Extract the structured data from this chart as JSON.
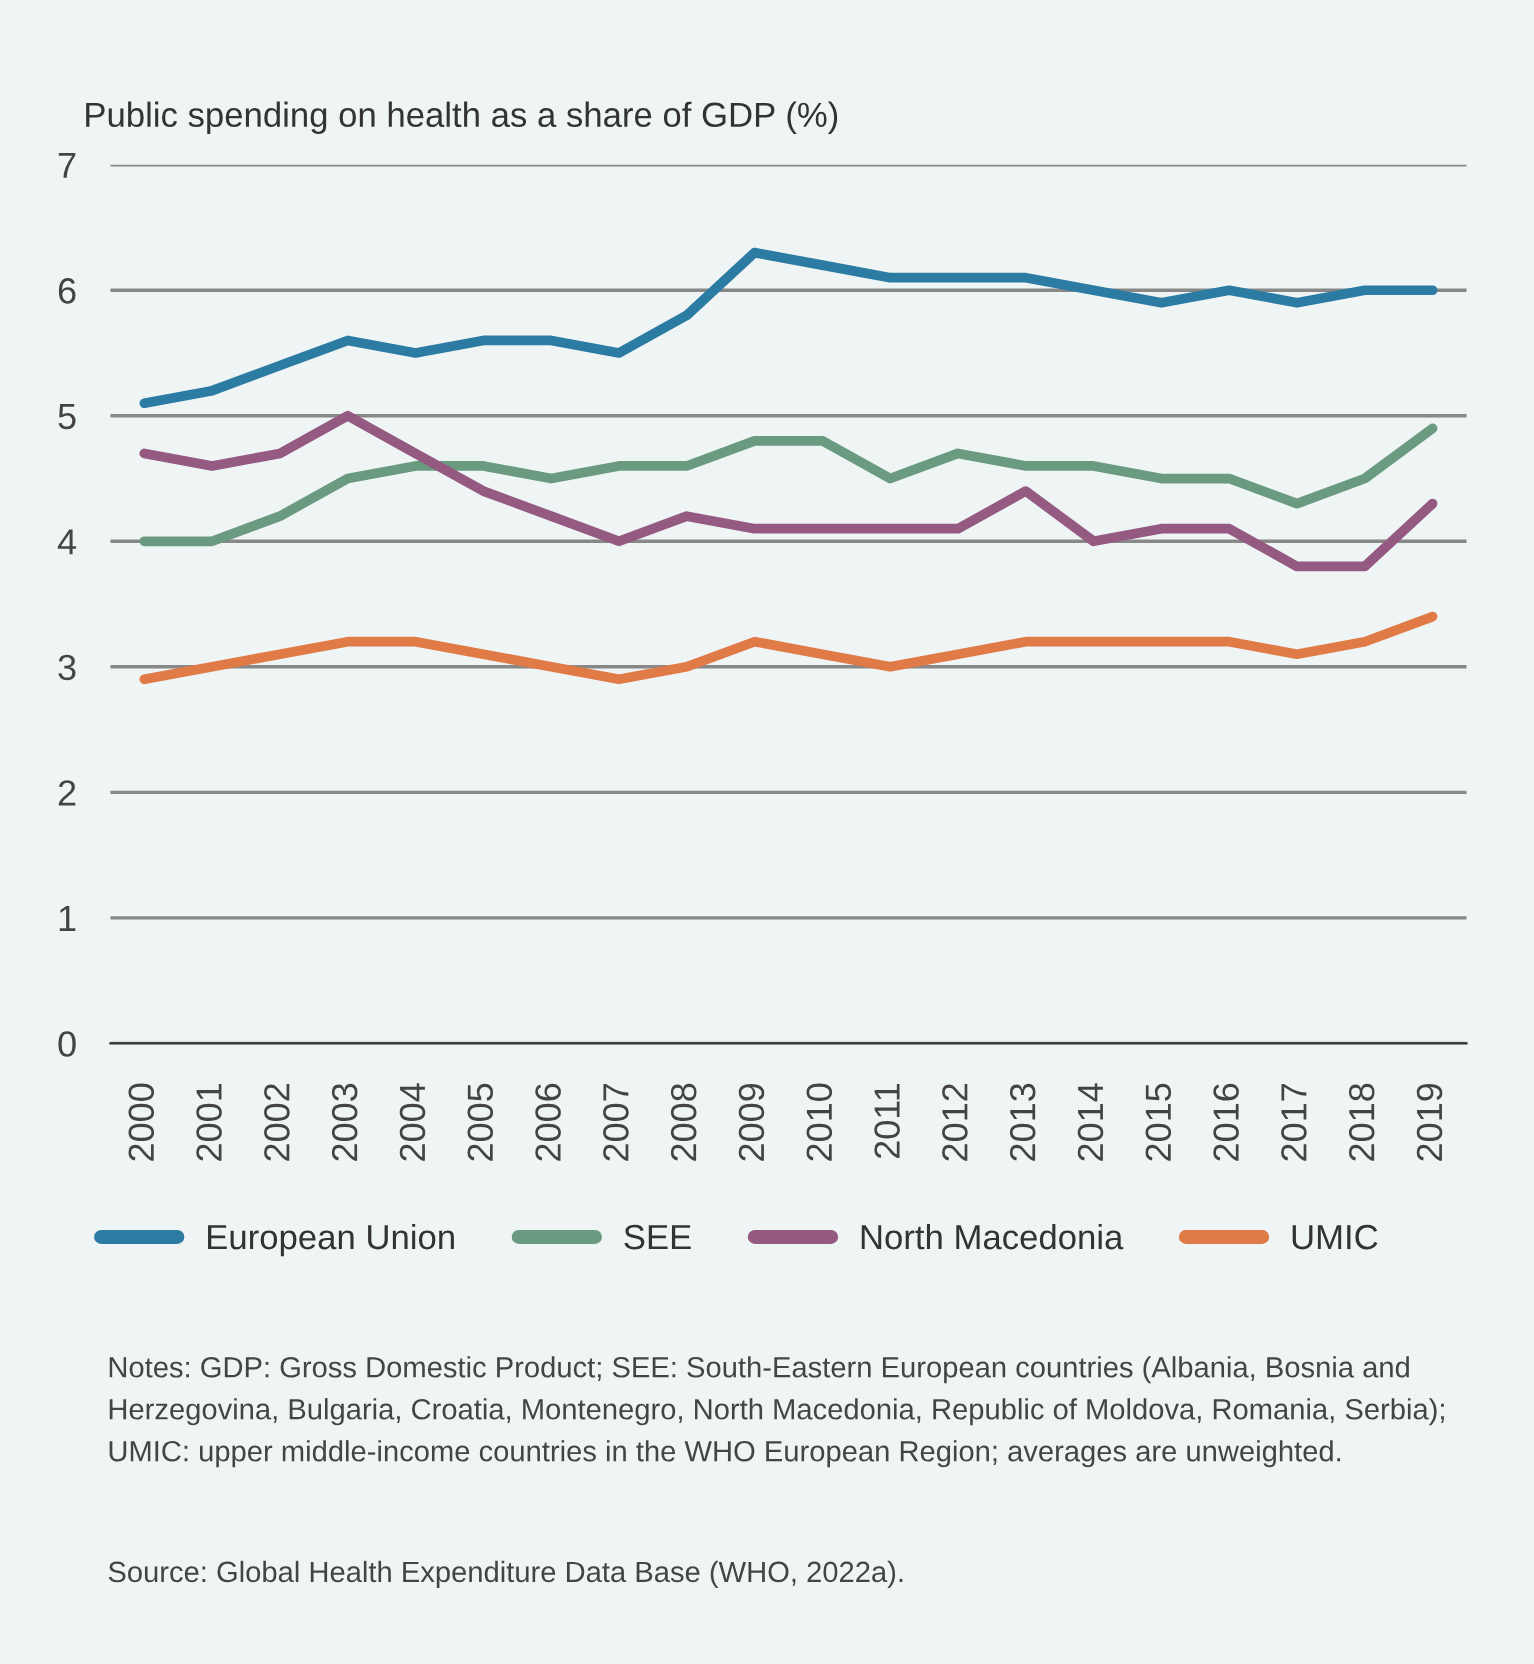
{
  "chart_data": {
    "type": "line",
    "ylabel": "Public spending on health as a share of GDP (%)",
    "categories": [
      "2000",
      "2001",
      "2002",
      "2003",
      "2004",
      "2005",
      "2006",
      "2007",
      "2008",
      "2009",
      "2010",
      "2011",
      "2012",
      "2013",
      "2014",
      "2015",
      "2016",
      "2017",
      "2018",
      "2019"
    ],
    "series": [
      {
        "name": "European Union",
        "color": "#2b7ba3",
        "values": [
          5.1,
          5.2,
          5.4,
          5.6,
          5.5,
          5.6,
          5.6,
          5.5,
          5.8,
          6.3,
          6.2,
          6.1,
          6.1,
          6.1,
          6.0,
          5.9,
          6.0,
          5.9,
          6.0,
          6.0
        ]
      },
      {
        "name": "SEE",
        "color": "#6a9a80",
        "values": [
          4.0,
          4.0,
          4.2,
          4.5,
          4.6,
          4.6,
          4.5,
          4.6,
          4.6,
          4.8,
          4.8,
          4.5,
          4.7,
          4.6,
          4.6,
          4.5,
          4.5,
          4.3,
          4.5,
          4.9
        ]
      },
      {
        "name": "North Macedonia",
        "color": "#955a82",
        "values": [
          4.7,
          4.6,
          4.7,
          5.0,
          4.7,
          4.4,
          4.2,
          4.0,
          4.2,
          4.1,
          4.1,
          4.1,
          4.1,
          4.4,
          4.0,
          4.1,
          4.1,
          3.8,
          3.8,
          4.3
        ]
      },
      {
        "name": "UMIC",
        "color": "#e07b47",
        "values": [
          2.9,
          3.0,
          3.1,
          3.2,
          3.2,
          3.1,
          3.0,
          2.9,
          3.0,
          3.2,
          3.1,
          3.0,
          3.1,
          3.2,
          3.2,
          3.2,
          3.2,
          3.1,
          3.2,
          3.4
        ]
      }
    ],
    "ylim": [
      0,
      7
    ],
    "yticks": [
      0,
      1,
      2,
      3,
      4,
      5,
      6,
      7
    ],
    "grid": "y",
    "legend": "bottom",
    "marker": "none",
    "line_style": "solid",
    "annotations": [
      "Notes: GDP: Gross Domestic Product; SEE: South-Eastern European countries (Albania, Bosnia and Herzegovina, Bulgaria, Croatia, Montenegro, North Macedonia, Republic of Moldova, Romania, Serbia); UMIC: upper middle-income countries in the WHO European Region; averages are unweighted.",
      "Source: Global Health Expenditure Data Base (WHO, 2022a)."
    ]
  }
}
